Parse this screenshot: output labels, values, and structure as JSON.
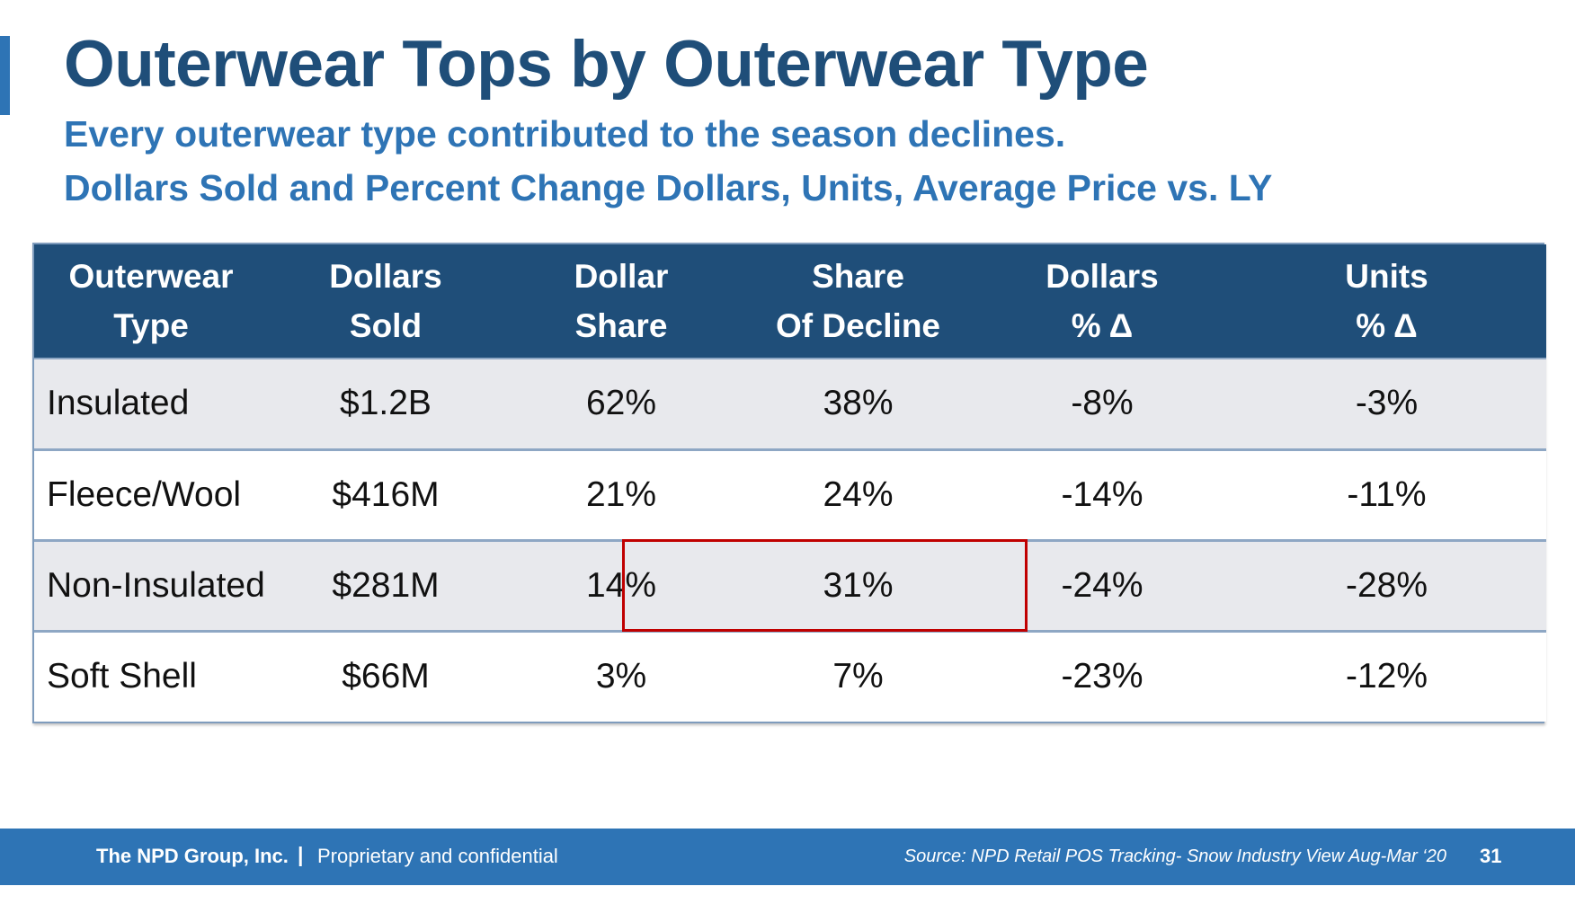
{
  "slide": {
    "title": "Outerwear Tops by Outerwear Type",
    "subtitle_line1": "Every outerwear type contributed to the season declines.",
    "subtitle_line2": "Dollars Sold and Percent Change Dollars, Units, Average Price vs. LY"
  },
  "table": {
    "headers": [
      [
        "Outerwear",
        "Type"
      ],
      [
        "Dollars",
        "Sold"
      ],
      [
        "Dollar",
        "Share"
      ],
      [
        "Share",
        "Of Decline"
      ],
      [
        "Dollars",
        "% Δ"
      ],
      [
        "Units",
        "% Δ"
      ]
    ],
    "rows": [
      [
        "Insulated",
        "$1.2B",
        "62%",
        "38%",
        "-8%",
        "-3%"
      ],
      [
        "Fleece/Wool",
        "$416M",
        "21%",
        "24%",
        "-14%",
        "-11%"
      ],
      [
        "Non-Insulated",
        "$281M",
        "14%",
        "31%",
        "-24%",
        "-28%"
      ],
      [
        "Soft Shell",
        "$66M",
        "3%",
        "7%",
        "-23%",
        "-12%"
      ]
    ],
    "highlight_color": "#c00000"
  },
  "footer": {
    "company": "The NPD Group, Inc.",
    "separator": "|",
    "confidential": "Proprietary and confidential",
    "source": "Source: NPD Retail POS Tracking- Snow Industry View Aug-Mar ‘20",
    "page_number": "31"
  },
  "colors": {
    "title": "#1f4e79",
    "subtitle": "#2e74b5",
    "header_bg": "#1f4e79",
    "footer_bg": "#2e74b5",
    "shaded_row": "#e8e9ed"
  }
}
